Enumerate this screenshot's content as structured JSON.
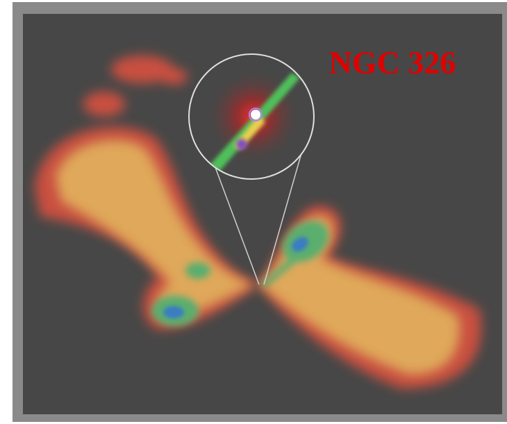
{
  "image": {
    "label": "NGC 326"
  }
}
